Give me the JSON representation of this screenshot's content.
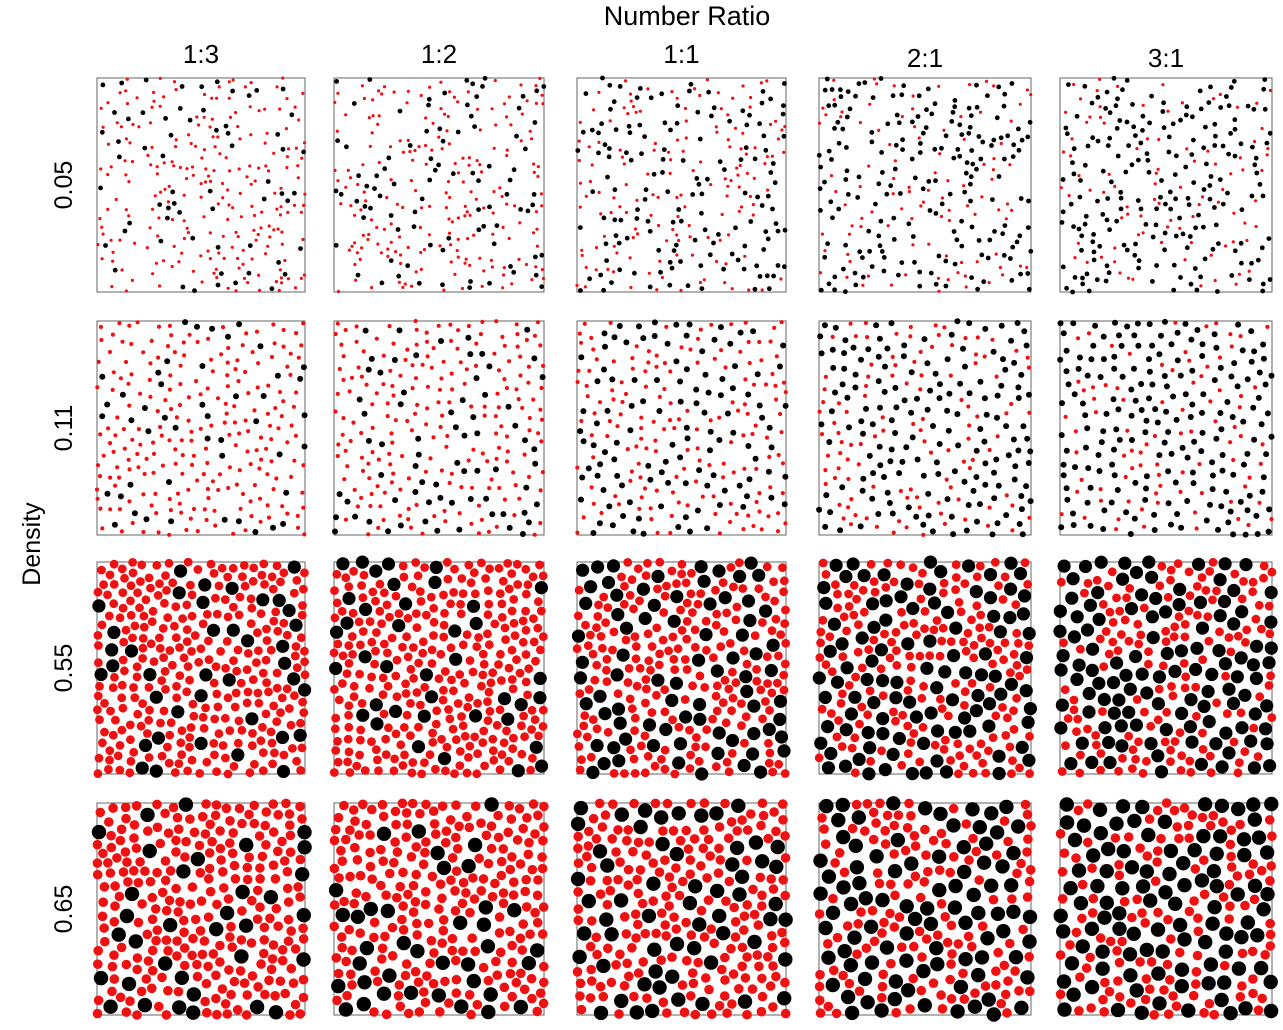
{
  "title": "Number Ratio",
  "row_axis_label": "Density",
  "columns": [
    "1:3",
    "1:2",
    "1:1",
    "2:1",
    "3:1"
  ],
  "rows": [
    "0.05",
    "0.11",
    "0.55",
    "0.65"
  ],
  "colors": {
    "large_particle": "#000000",
    "small_particle": "#ee1111",
    "frame": "#666666"
  },
  "panels_description": {
    "number_ratio_values": [
      0.3333,
      0.5,
      1,
      2,
      3
    ],
    "density_values": [
      0.05,
      0.11,
      0.55,
      0.65
    ]
  }
}
